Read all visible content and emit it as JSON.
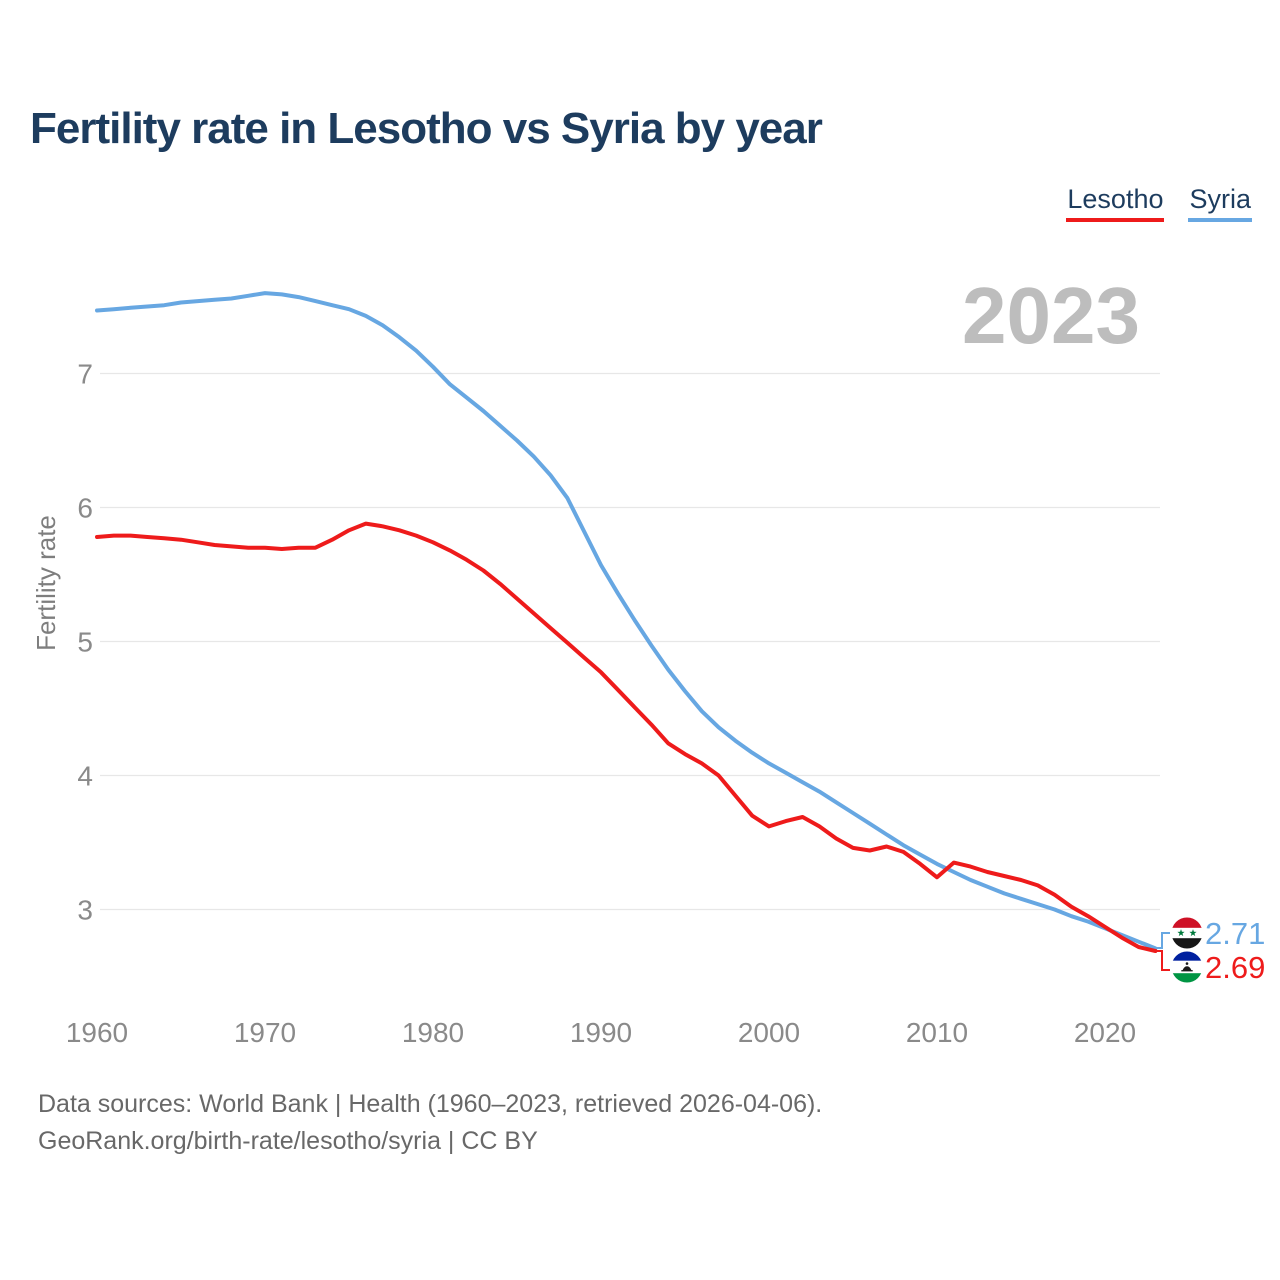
{
  "page": {
    "title": "Fertility rate in Lesotho vs Syria by year",
    "watermark": "2023",
    "footer_line1": "Data sources: World Bank | Health (1960–2023, retrieved 2026-04-06).",
    "footer_line2": "GeoRank.org/birth-rate/lesotho/syria | CC BY"
  },
  "legend": [
    {
      "label": "Lesotho",
      "color": "#ee1b1b"
    },
    {
      "label": "Syria",
      "color": "#67a7e2"
    }
  ],
  "end_labels": [
    {
      "series": "Syria",
      "value": "2.71",
      "color": "#67a7e2",
      "flag": "syria-flag"
    },
    {
      "series": "Lesotho",
      "value": "2.69",
      "color": "#ee1b1b",
      "flag": "lesotho-flag"
    }
  ],
  "colors": {
    "title_navy": "#1d3c5e",
    "axis_gray": "#8a8a8a",
    "gridline": "#e7e7e7",
    "watermark_gray": "#bdbdbd",
    "footer_gray": "#686868"
  },
  "chart_data": {
    "type": "line",
    "title": "Fertility rate in Lesotho vs Syria by year",
    "ylabel": "Fertility rate",
    "xlabel": "",
    "grid": "horizontal",
    "legend_position": "top-right",
    "x_ticks": [
      1960,
      1970,
      1980,
      1990,
      2000,
      2010,
      2020
    ],
    "y_ticks": [
      7,
      6,
      5,
      4,
      3
    ],
    "ylim": [
      2.55,
      7.9
    ],
    "xlim": [
      1960,
      2023
    ],
    "x": [
      1960,
      1961,
      1962,
      1963,
      1964,
      1965,
      1966,
      1967,
      1968,
      1969,
      1970,
      1971,
      1972,
      1973,
      1974,
      1975,
      1976,
      1977,
      1978,
      1979,
      1980,
      1981,
      1982,
      1983,
      1984,
      1985,
      1986,
      1987,
      1988,
      1989,
      1990,
      1991,
      1992,
      1993,
      1994,
      1995,
      1996,
      1997,
      1998,
      1999,
      2000,
      2001,
      2002,
      2003,
      2004,
      2005,
      2006,
      2007,
      2008,
      2009,
      2010,
      2011,
      2012,
      2013,
      2014,
      2015,
      2016,
      2017,
      2018,
      2019,
      2020,
      2021,
      2022,
      2023
    ],
    "series": [
      {
        "name": "Lesotho",
        "color": "#ee1b1b",
        "end_value": 2.69,
        "values": [
          5.78,
          5.79,
          5.79,
          5.78,
          5.77,
          5.76,
          5.74,
          5.72,
          5.71,
          5.7,
          5.7,
          5.69,
          5.7,
          5.7,
          5.76,
          5.83,
          5.88,
          5.86,
          5.83,
          5.79,
          5.74,
          5.68,
          5.61,
          5.53,
          5.43,
          5.32,
          5.21,
          5.1,
          4.99,
          4.88,
          4.77,
          4.64,
          4.51,
          4.38,
          4.24,
          4.16,
          4.09,
          4.0,
          3.85,
          3.7,
          3.62,
          3.66,
          3.69,
          3.62,
          3.53,
          3.46,
          3.44,
          3.47,
          3.43,
          3.34,
          3.24,
          3.35,
          3.32,
          3.28,
          3.25,
          3.22,
          3.18,
          3.11,
          3.02,
          2.95,
          2.87,
          2.79,
          2.72,
          2.69
        ]
      },
      {
        "name": "Syria",
        "color": "#67a7e2",
        "end_value": 2.71,
        "values": [
          7.47,
          7.48,
          7.49,
          7.5,
          7.51,
          7.53,
          7.54,
          7.55,
          7.56,
          7.58,
          7.6,
          7.59,
          7.57,
          7.54,
          7.51,
          7.48,
          7.43,
          7.36,
          7.27,
          7.17,
          7.05,
          6.92,
          6.82,
          6.72,
          6.61,
          6.5,
          6.38,
          6.24,
          6.07,
          5.82,
          5.57,
          5.36,
          5.16,
          4.97,
          4.79,
          4.63,
          4.48,
          4.36,
          4.26,
          4.17,
          4.09,
          4.02,
          3.95,
          3.88,
          3.8,
          3.72,
          3.64,
          3.56,
          3.48,
          3.41,
          3.34,
          3.28,
          3.22,
          3.17,
          3.12,
          3.08,
          3.04,
          3.0,
          2.95,
          2.91,
          2.86,
          2.81,
          2.76,
          2.71
        ]
      }
    ]
  }
}
